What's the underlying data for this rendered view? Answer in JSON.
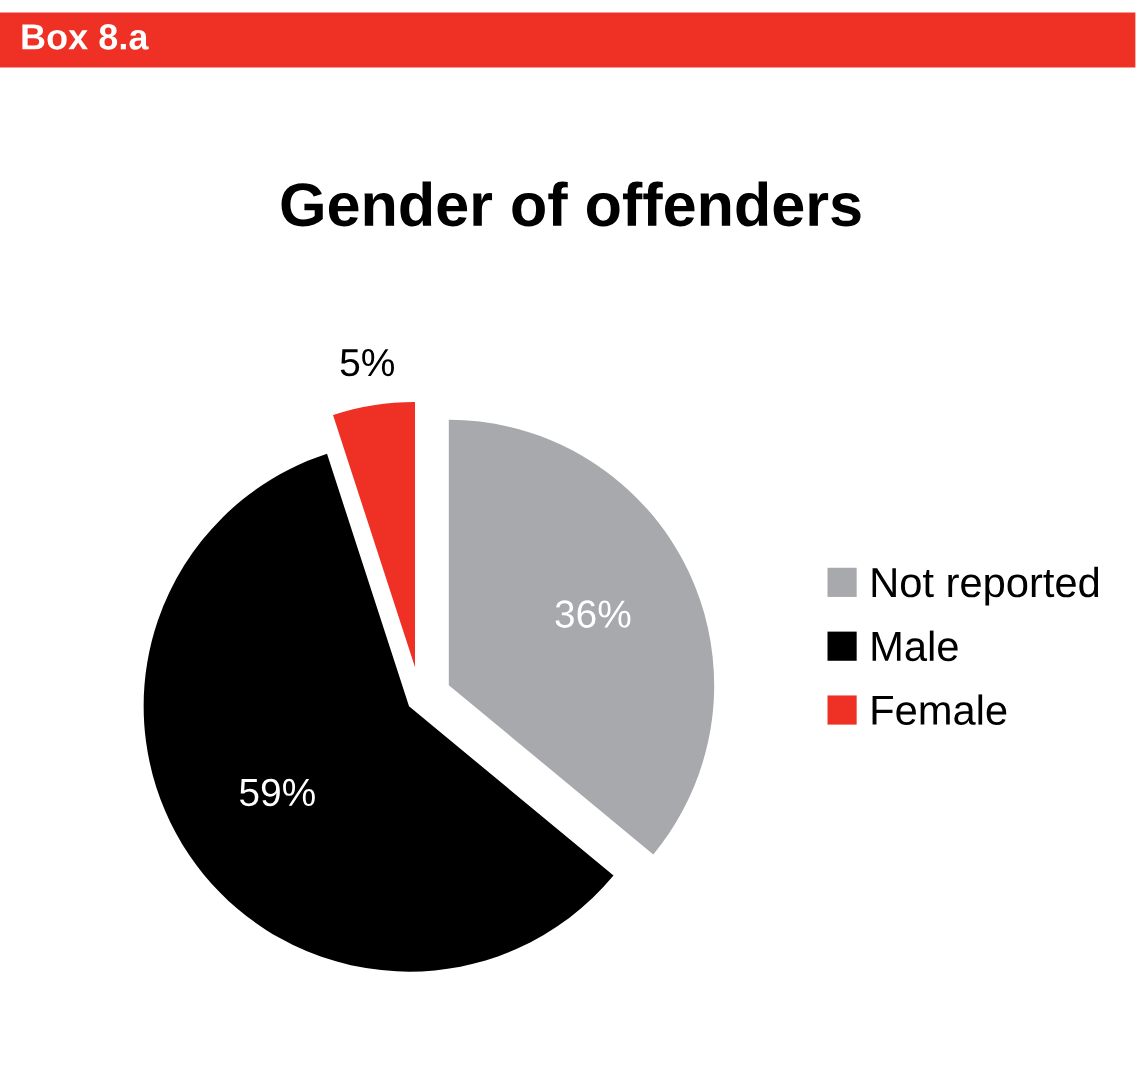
{
  "chart_data": {
    "type": "pie",
    "title": "Gender of offenders",
    "annotations": [
      "Box 8.a"
    ],
    "categories": [
      "Not reported",
      "Male",
      "Female"
    ],
    "values": [
      36,
      59,
      5
    ],
    "value_labels": [
      "36%",
      "59%",
      "5%"
    ],
    "colors": [
      "#a7a9ac",
      "#000000",
      "#ee3124"
    ],
    "legend": "right"
  }
}
